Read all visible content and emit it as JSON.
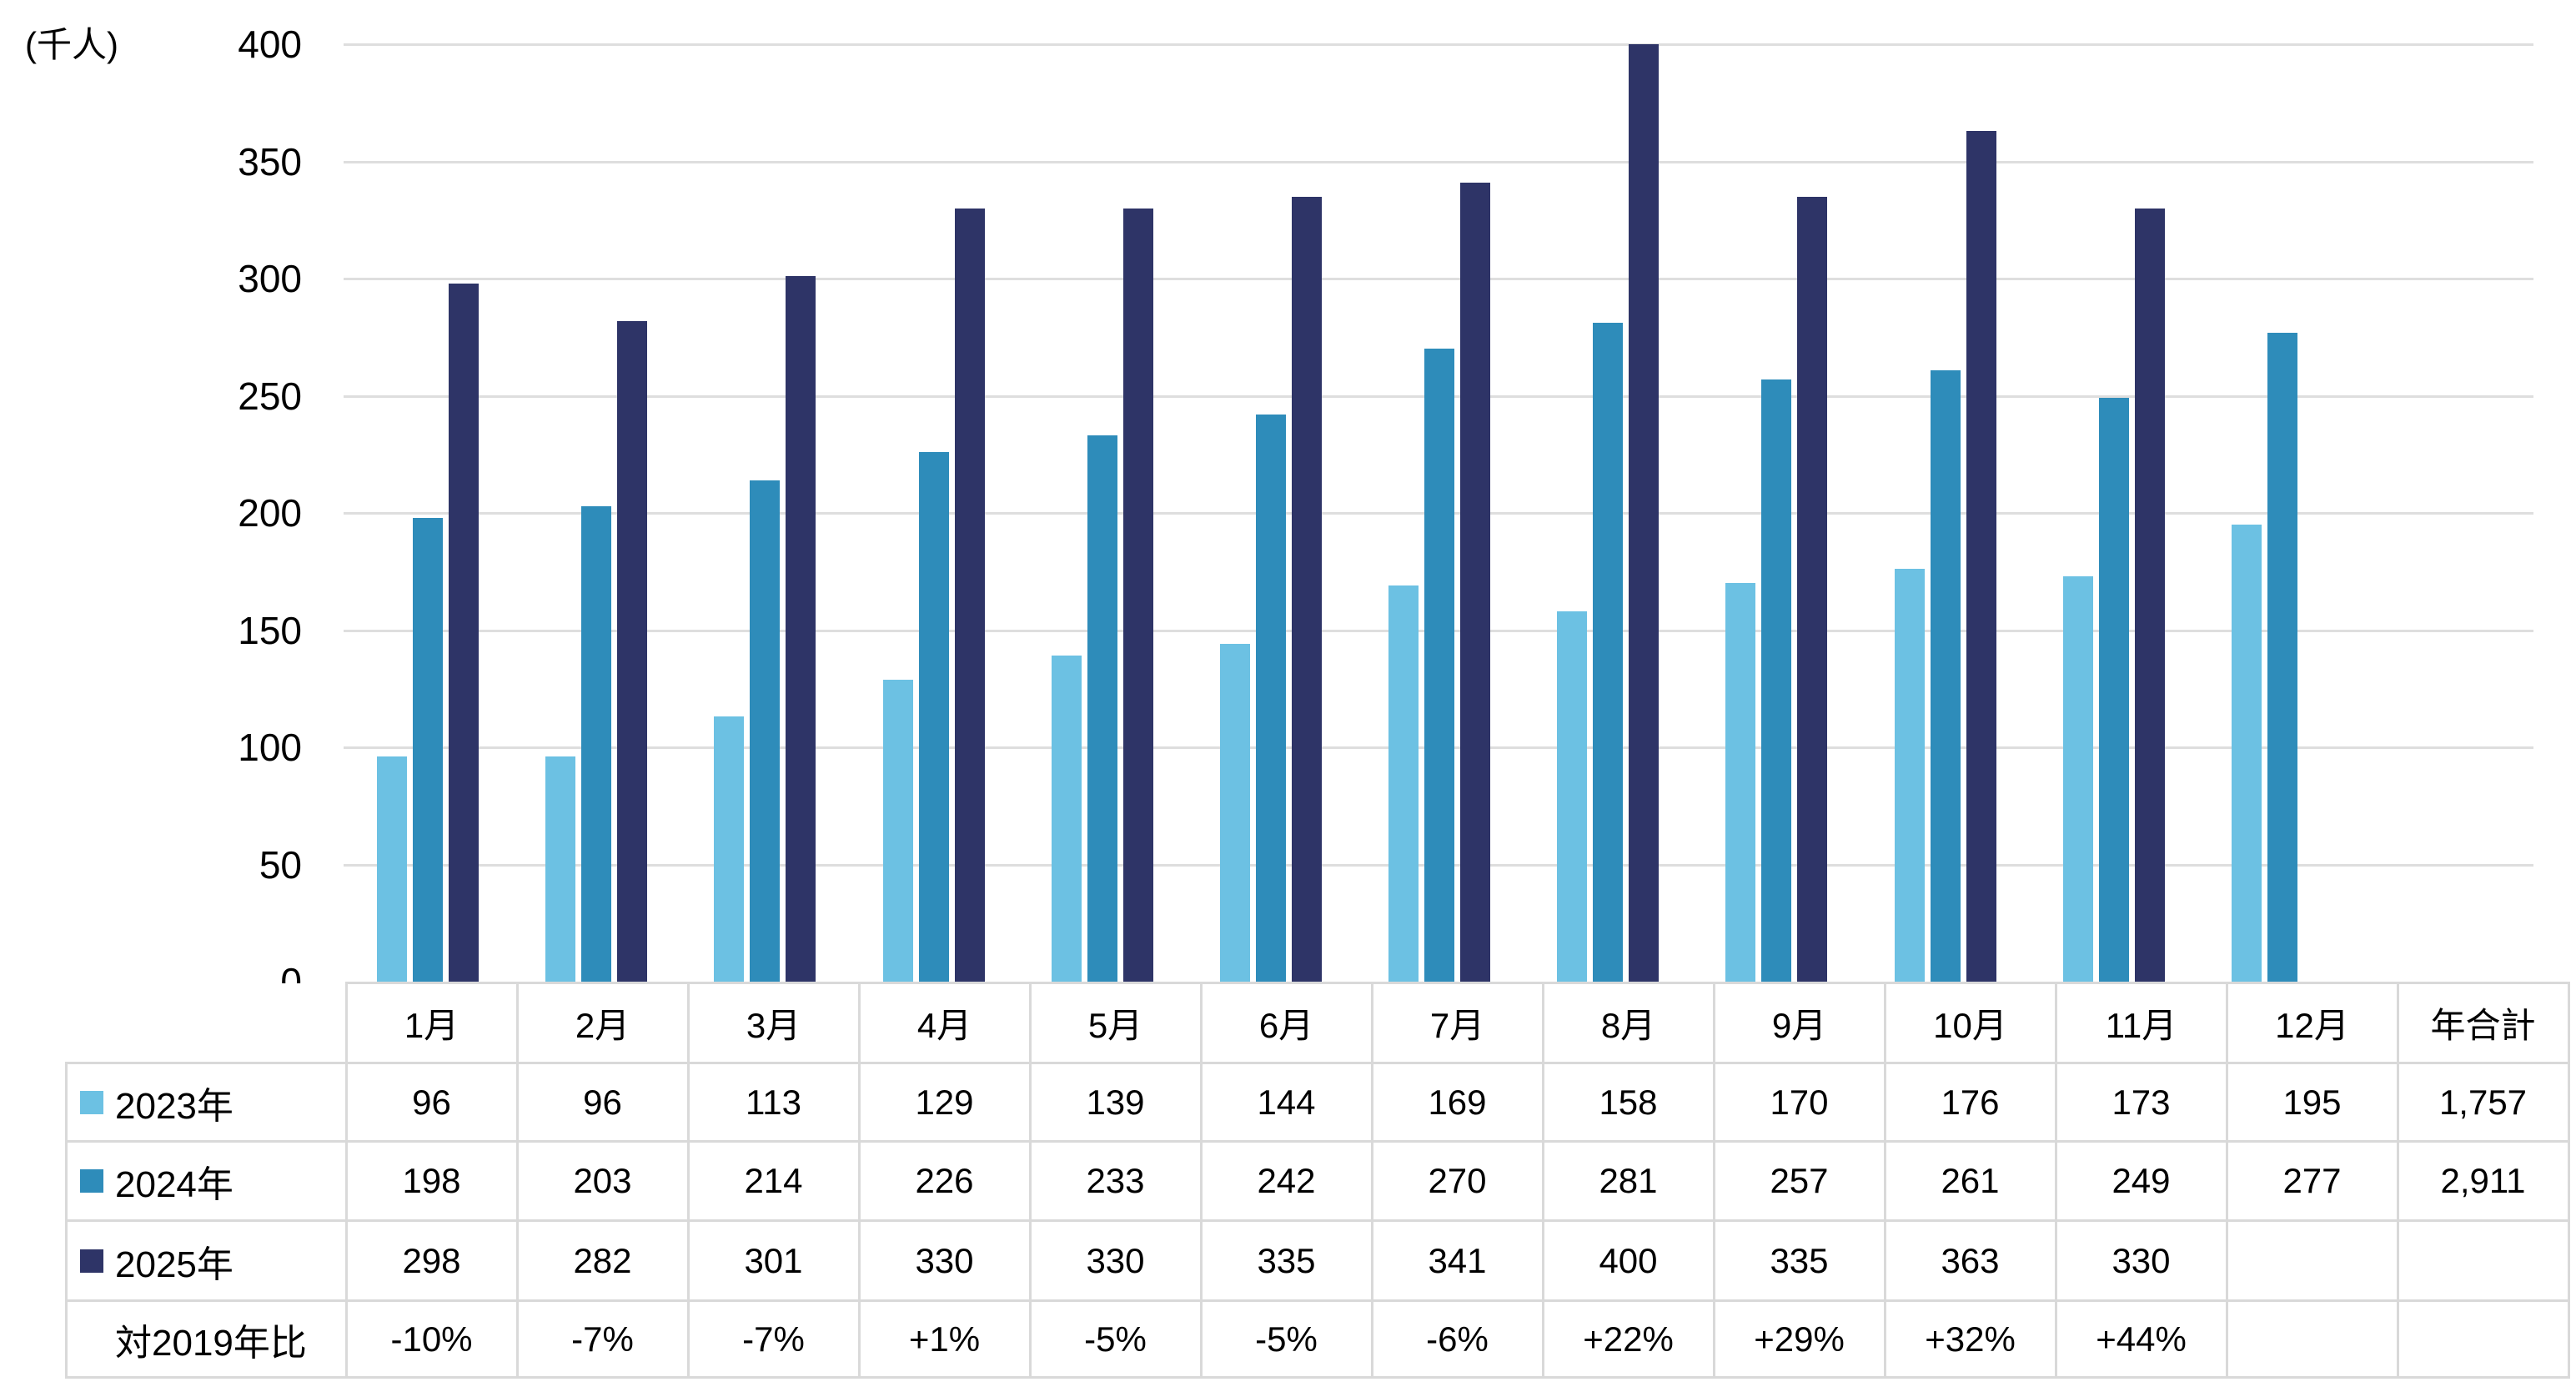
{
  "unit_label": "(千人)",
  "chart_data": {
    "type": "bar",
    "unit": "千人",
    "title": "",
    "xlabel": "",
    "ylabel": "(千人)",
    "ylim": [
      0,
      400
    ],
    "yticks": [
      0,
      50,
      100,
      150,
      200,
      250,
      300,
      350,
      400
    ],
    "grid": true,
    "legend_position": "table-rows-left",
    "categories": [
      "1月",
      "2月",
      "3月",
      "4月",
      "5月",
      "6月",
      "7月",
      "8月",
      "9月",
      "10月",
      "11月",
      "12月"
    ],
    "series": [
      {
        "name": "2023年",
        "color": "#6CC1E3",
        "values": [
          96,
          96,
          113,
          129,
          139,
          144,
          169,
          158,
          170,
          176,
          173,
          195
        ]
      },
      {
        "name": "2024年",
        "color": "#2E8CBA",
        "values": [
          198,
          203,
          214,
          226,
          233,
          242,
          270,
          281,
          257,
          261,
          249,
          277
        ]
      },
      {
        "name": "2025年",
        "color": "#2E3467",
        "values": [
          298,
          282,
          301,
          330,
          330,
          335,
          341,
          400,
          335,
          363,
          330,
          null
        ]
      }
    ]
  },
  "table": {
    "columns": [
      "1月",
      "2月",
      "3月",
      "4月",
      "5月",
      "6月",
      "7月",
      "8月",
      "9月",
      "10月",
      "11月",
      "12月",
      "年合計"
    ],
    "rows": [
      {
        "label": "2023年",
        "swatch_color": "#6CC1E3",
        "cells": [
          "96",
          "96",
          "113",
          "129",
          "139",
          "144",
          "169",
          "158",
          "170",
          "176",
          "173",
          "195",
          "1,757"
        ]
      },
      {
        "label": "2024年",
        "swatch_color": "#2E8CBA",
        "cells": [
          "198",
          "203",
          "214",
          "226",
          "233",
          "242",
          "270",
          "281",
          "257",
          "261",
          "249",
          "277",
          "2,911"
        ]
      },
      {
        "label": "2025年",
        "swatch_color": "#2E3467",
        "cells": [
          "298",
          "282",
          "301",
          "330",
          "330",
          "335",
          "341",
          "400",
          "335",
          "363",
          "330",
          "",
          ""
        ]
      },
      {
        "label": "対2019年比",
        "swatch_color": null,
        "cells": [
          "-10%",
          "-7%",
          "-7%",
          "+1%",
          "-5%",
          "-5%",
          "-6%",
          "+22%",
          "+29%",
          "+32%",
          "+44%",
          "",
          ""
        ]
      }
    ]
  },
  "colors": {
    "grid": "#DEDEDE",
    "table_border": "#D9D9D9",
    "text": "#000000"
  }
}
